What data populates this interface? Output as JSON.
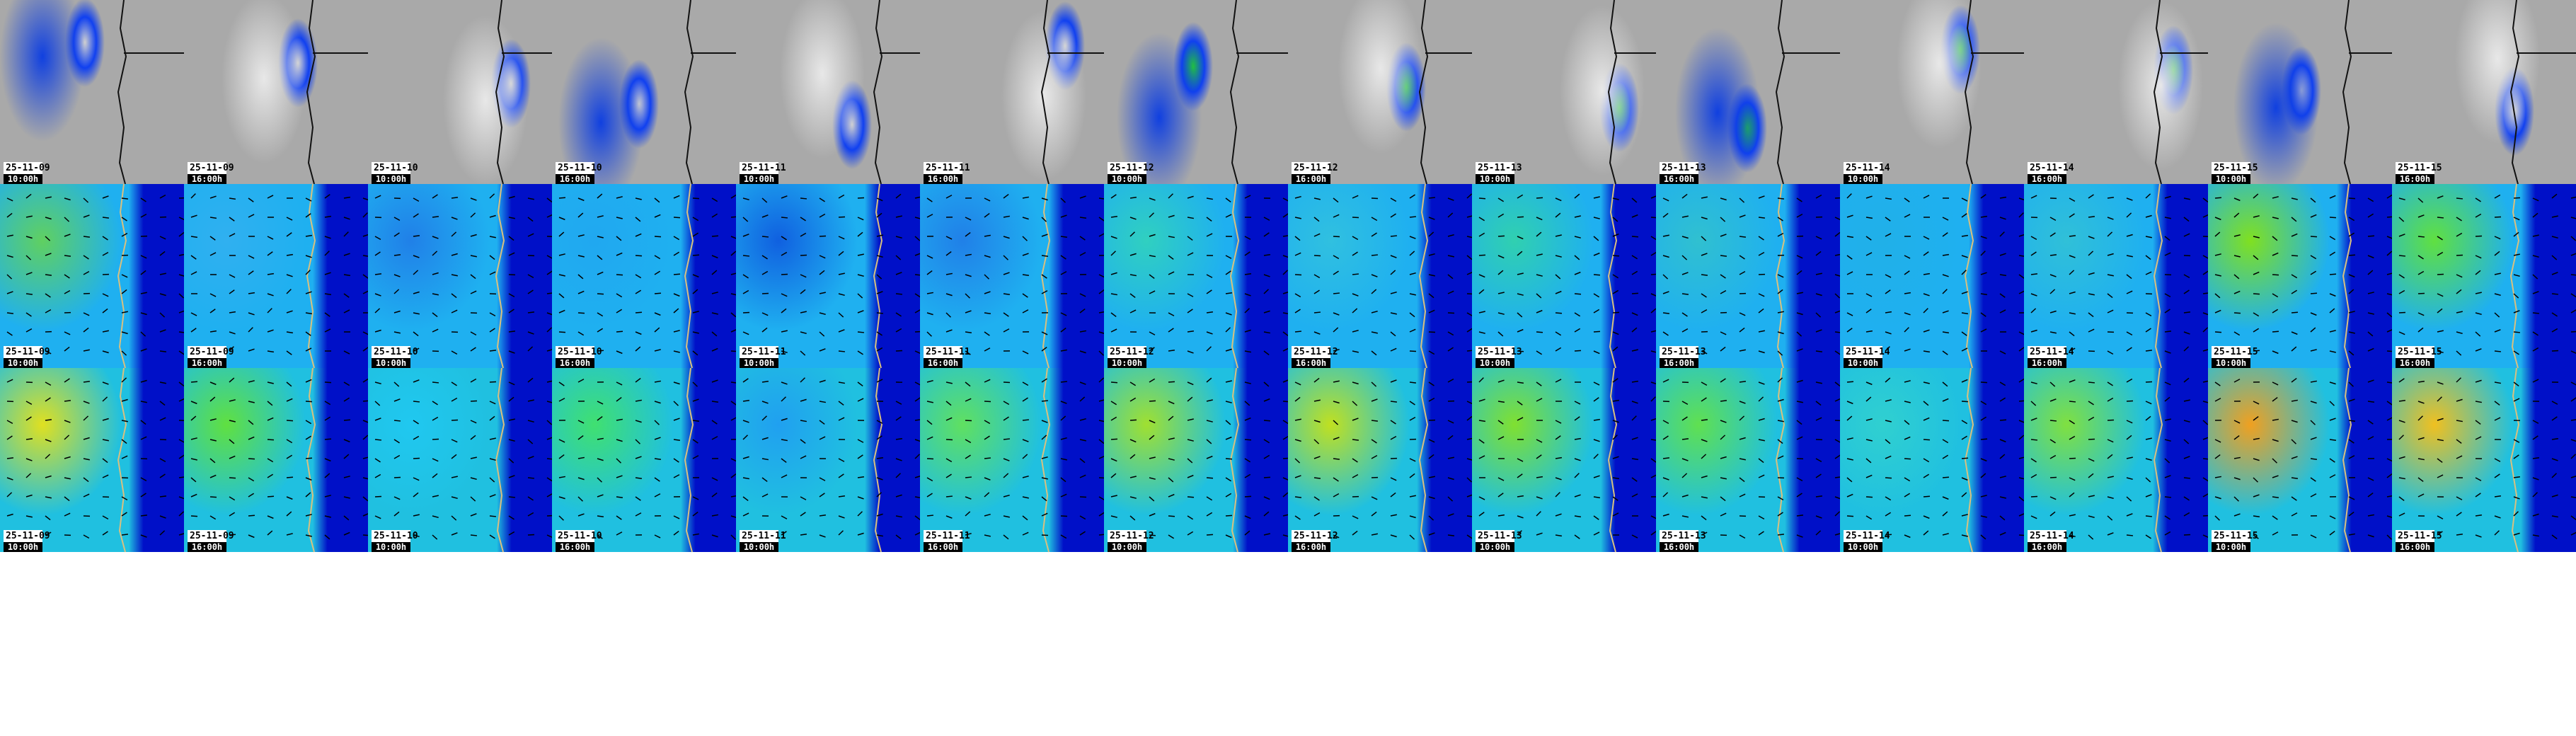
{
  "rows": [
    {
      "name": "precipitation-satellite",
      "base": "#a9a9a9"
    },
    {
      "name": "wind-upper",
      "base": "#1fb0f0"
    },
    {
      "name": "wind-lower",
      "base": "#20c0e0"
    }
  ],
  "timestamps": [
    {
      "date": "25-11-09",
      "time": "10:00h"
    },
    {
      "date": "25-11-09",
      "time": "16:00h"
    },
    {
      "date": "25-11-10",
      "time": "10:00h"
    },
    {
      "date": "25-11-10",
      "time": "16:00h"
    },
    {
      "date": "25-11-11",
      "time": "10:00h"
    },
    {
      "date": "25-11-11",
      "time": "16:00h"
    },
    {
      "date": "25-11-12",
      "time": "10:00h"
    },
    {
      "date": "25-11-12",
      "time": "16:00h"
    },
    {
      "date": "25-11-13",
      "time": "10:00h"
    },
    {
      "date": "25-11-13",
      "time": "16:00h"
    },
    {
      "date": "25-11-14",
      "time": "10:00h"
    },
    {
      "date": "25-11-14",
      "time": "16:00h"
    },
    {
      "date": "25-11-15",
      "time": "10:00h"
    },
    {
      "date": "25-11-15",
      "time": "16:00h"
    }
  ],
  "colors": {
    "row2_dominant": [
      "#60d060",
      "#30b0f0",
      "#2080e8",
      "#20a8f0",
      "#1060e0",
      "#2080e8",
      "#30d0c0",
      "#30c0e0",
      "#30d0b0",
      "#30c0d0",
      "#20b0e8",
      "#30c0d8",
      "#80e020",
      "#60e040"
    ],
    "row3_dominant": [
      "#e0e020",
      "#60e040",
      "#20c8f0",
      "#40e070",
      "#20a0f0",
      "#60e060",
      "#a0e030",
      "#c0e020",
      "#80e030",
      "#60e050",
      "#30d0d0",
      "#80e040",
      "#f0a020",
      "#f0c020"
    ],
    "ocean_deep": "#0010c8",
    "land_gray": "#a9a9a9"
  }
}
